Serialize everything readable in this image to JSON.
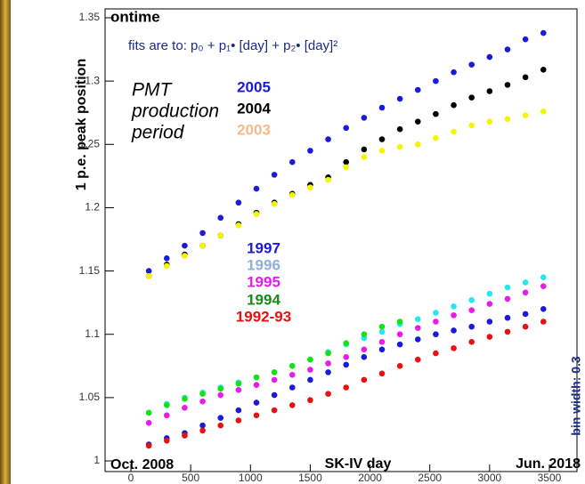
{
  "chart_data": {
    "type": "scatter",
    "title": "ontime",
    "subtitle": "fits are to: p₀ + p₁• [day] + p₂• [day]²",
    "y_label": "1 p.e. peak position",
    "x_label": "SK-IV day",
    "legend_title": [
      "PMT",
      "production",
      "period"
    ],
    "start_label": "Oct. 2008",
    "end_label": "Jun. 2018",
    "side_note": "bin width: 0.3",
    "xlim": [
      -216,
      3731
    ],
    "xticks": [
      0,
      500,
      1000,
      1500,
      2000,
      2500,
      3000,
      3500
    ],
    "ylim": [
      0.9916,
      1.357
    ],
    "yticks": [
      1,
      1.05,
      1.1,
      1.15,
      1.2,
      1.25,
      1.3,
      1.35
    ],
    "x": [
      150,
      300,
      450,
      600,
      750,
      900,
      1050,
      1200,
      1350,
      1500,
      1650,
      1800,
      1950,
      2100,
      2250,
      2400,
      2550,
      2700,
      2850,
      3000,
      3150,
      3300,
      3450
    ],
    "series": [
      {
        "name": "2005",
        "color": "#1a1adc",
        "values": [
          1.15,
          1.16,
          1.17,
          1.18,
          1.192,
          1.204,
          1.215,
          1.226,
          1.236,
          1.245,
          1.254,
          1.263,
          1.271,
          1.279,
          1.286,
          1.293,
          1.3,
          1.307,
          1.313,
          1.319,
          1.325,
          1.333,
          1.338
        ]
      },
      {
        "name": "2004",
        "color": "#000000",
        "values": [
          1.146,
          1.155,
          1.163,
          1.17,
          1.178,
          1.187,
          1.196,
          1.204,
          1.211,
          1.218,
          1.224,
          1.236,
          1.246,
          1.254,
          1.262,
          1.268,
          1.274,
          1.281,
          1.287,
          1.292,
          1.297,
          1.303,
          1.309
        ]
      },
      {
        "name": "2003",
        "color": "#f5f500",
        "legend_color": "#f5b98c",
        "values": [
          1.146,
          1.154,
          1.162,
          1.17,
          1.178,
          1.186,
          1.195,
          1.203,
          1.21,
          1.216,
          1.222,
          1.232,
          1.24,
          1.245,
          1.248,
          1.25,
          1.255,
          1.26,
          1.265,
          1.268,
          1.27,
          1.273,
          1.276
        ]
      },
      {
        "name": "1997",
        "color": "#1a1adc",
        "values": [
          1.013,
          1.018,
          1.022,
          1.028,
          1.034,
          1.04,
          1.046,
          1.052,
          1.058,
          1.064,
          1.07,
          1.076,
          1.082,
          1.088,
          1.092,
          1.096,
          1.1,
          1.103,
          1.106,
          1.11,
          1.113,
          1.116,
          1.12
        ]
      },
      {
        "name": "1996",
        "color": "#22e8f0",
        "legend_color": "#8fb0dc",
        "values": [
          1.038,
          1.045,
          1.05,
          1.054,
          1.058,
          1.062,
          1.066,
          1.07,
          1.075,
          1.08,
          1.086,
          1.092,
          1.097,
          1.102,
          1.108,
          1.112,
          1.117,
          1.122,
          1.127,
          1.132,
          1.137,
          1.141,
          1.145
        ]
      },
      {
        "name": "1995",
        "color": "#e81ce8",
        "values": [
          1.03,
          1.036,
          1.042,
          1.047,
          1.052,
          1.056,
          1.06,
          1.064,
          1.068,
          1.072,
          1.077,
          1.082,
          1.088,
          1.094,
          1.1,
          1.105,
          1.11,
          1.115,
          1.119,
          1.124,
          1.128,
          1.133,
          1.138
        ]
      },
      {
        "name": "1994",
        "color": "#18e018",
        "legend_color": "#1a8a1a",
        "values": [
          1.038,
          1.044,
          1.049,
          1.053,
          1.057,
          1.061,
          1.066,
          1.07,
          1.075,
          1.08,
          1.085,
          1.093,
          1.1,
          1.106,
          1.11,
          null,
          null,
          null,
          null,
          null,
          null,
          null,
          null
        ]
      },
      {
        "name": "1992-93",
        "color": "#e81010",
        "values": [
          1.012,
          1.016,
          1.02,
          1.024,
          1.028,
          1.032,
          1.036,
          1.04,
          1.044,
          1.048,
          1.053,
          1.058,
          1.064,
          1.069,
          1.075,
          1.08,
          1.085,
          1.089,
          1.094,
          1.098,
          1.102,
          1.106,
          1.11
        ]
      }
    ]
  }
}
